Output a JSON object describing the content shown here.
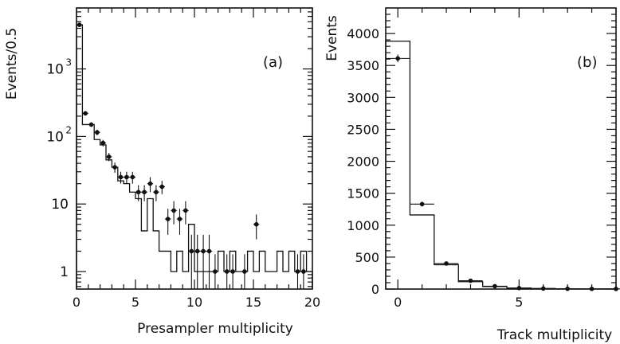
{
  "chart_data": [
    {
      "type": "line",
      "panel_label": "(a)",
      "xlabel": "Presampler multiplicity",
      "ylabel": "Events/0.5",
      "xlim": [
        0,
        20
      ],
      "ylim": [
        0.55,
        8000
      ],
      "yscale": "log",
      "xticks": [
        0,
        5,
        10,
        15,
        20
      ],
      "yticks": [
        {
          "v": 1,
          "label": "1"
        },
        {
          "v": 10,
          "label": "10"
        },
        {
          "v": 100,
          "label": "10",
          "exp": "2"
        },
        {
          "v": 1000,
          "label": "10",
          "exp": "3"
        }
      ],
      "series": [
        {
          "kind": "histogram",
          "edges": [
            0,
            0.5,
            1,
            1.5,
            2,
            2.5,
            3,
            3.5,
            4,
            4.5,
            5,
            5.5,
            6,
            6.5,
            7,
            7.5,
            8,
            8.5,
            9,
            9.5,
            10,
            10.5,
            11,
            11.5,
            12,
            12.5,
            13,
            13.5,
            14,
            14.5,
            15,
            15.5,
            16,
            16.5,
            17,
            17.5,
            18,
            18.5,
            19,
            19.5,
            20
          ],
          "values": [
            4500,
            150,
            150,
            90,
            75,
            45,
            35,
            22,
            20,
            15,
            12,
            4,
            12,
            4,
            2,
            2,
            1,
            2,
            1,
            5,
            1,
            1,
            1,
            1,
            2,
            1,
            2,
            1,
            1,
            2,
            1,
            2,
            1,
            1,
            2,
            1,
            2,
            1,
            2,
            1
          ]
        },
        {
          "kind": "points",
          "x": [
            0.25,
            0.75,
            1.25,
            1.75,
            2.25,
            2.75,
            3.25,
            3.75,
            4.25,
            4.75,
            5.25,
            5.75,
            6.25,
            6.75,
            7.25,
            7.75,
            8.25,
            8.75,
            9.25,
            9.75,
            10.25,
            10.75,
            11.25,
            11.75,
            12.75,
            13.25,
            14.25,
            15.25,
            18.75,
            19.25
          ],
          "y": [
            4500,
            220,
            150,
            115,
            80,
            50,
            35,
            25,
            25,
            25,
            15,
            15,
            20,
            15,
            18,
            6,
            8,
            6,
            8,
            2,
            2,
            2,
            2,
            1,
            1,
            1,
            1,
            5,
            1,
            1
          ],
          "err_lo": [
            300,
            15,
            12,
            11,
            9,
            7,
            6,
            5,
            5,
            5,
            4,
            4,
            5,
            4,
            4,
            2.5,
            3,
            2.5,
            3,
            1.5,
            1.5,
            1.5,
            1.5,
            0.8,
            0.8,
            0.8,
            0.8,
            2,
            0.8,
            0.8
          ],
          "err_hi": [
            300,
            15,
            12,
            11,
            9,
            7,
            6,
            5,
            5,
            5,
            4,
            4,
            5,
            4,
            4,
            2.5,
            3,
            2.5,
            3,
            1.5,
            1.5,
            1.5,
            1.5,
            0.8,
            0.8,
            0.8,
            0.8,
            2,
            0.8,
            0.8
          ]
        }
      ]
    },
    {
      "type": "line",
      "panel_label": "(b)",
      "xlabel": "Track multiplicity",
      "ylabel": "Events",
      "xlim": [
        -0.5,
        9
      ],
      "ylim": [
        0,
        4400
      ],
      "xticks": [
        0,
        5
      ],
      "yticks": [
        0,
        500,
        1000,
        1500,
        2000,
        2500,
        3000,
        3500,
        4000
      ],
      "series": [
        {
          "kind": "histogram",
          "edges": [
            -0.5,
            0.5,
            1.5,
            2.5,
            3.5,
            4.5,
            5.5,
            6.5,
            7.5,
            8.5,
            9
          ],
          "values": [
            3880,
            1160,
            380,
            115,
            40,
            15,
            8,
            4,
            2,
            2
          ]
        },
        {
          "kind": "points",
          "x": [
            0,
            1,
            2,
            3,
            4,
            5,
            6,
            7,
            8,
            9
          ],
          "y": [
            3610,
            1330,
            400,
            130,
            45,
            15,
            8,
            5,
            3,
            2
          ],
          "err_lo": [
            60,
            37,
            20,
            11,
            7,
            4,
            3,
            2,
            2,
            1
          ],
          "err_hi": [
            60,
            37,
            20,
            11,
            7,
            4,
            3,
            2,
            2,
            1
          ]
        }
      ]
    }
  ]
}
